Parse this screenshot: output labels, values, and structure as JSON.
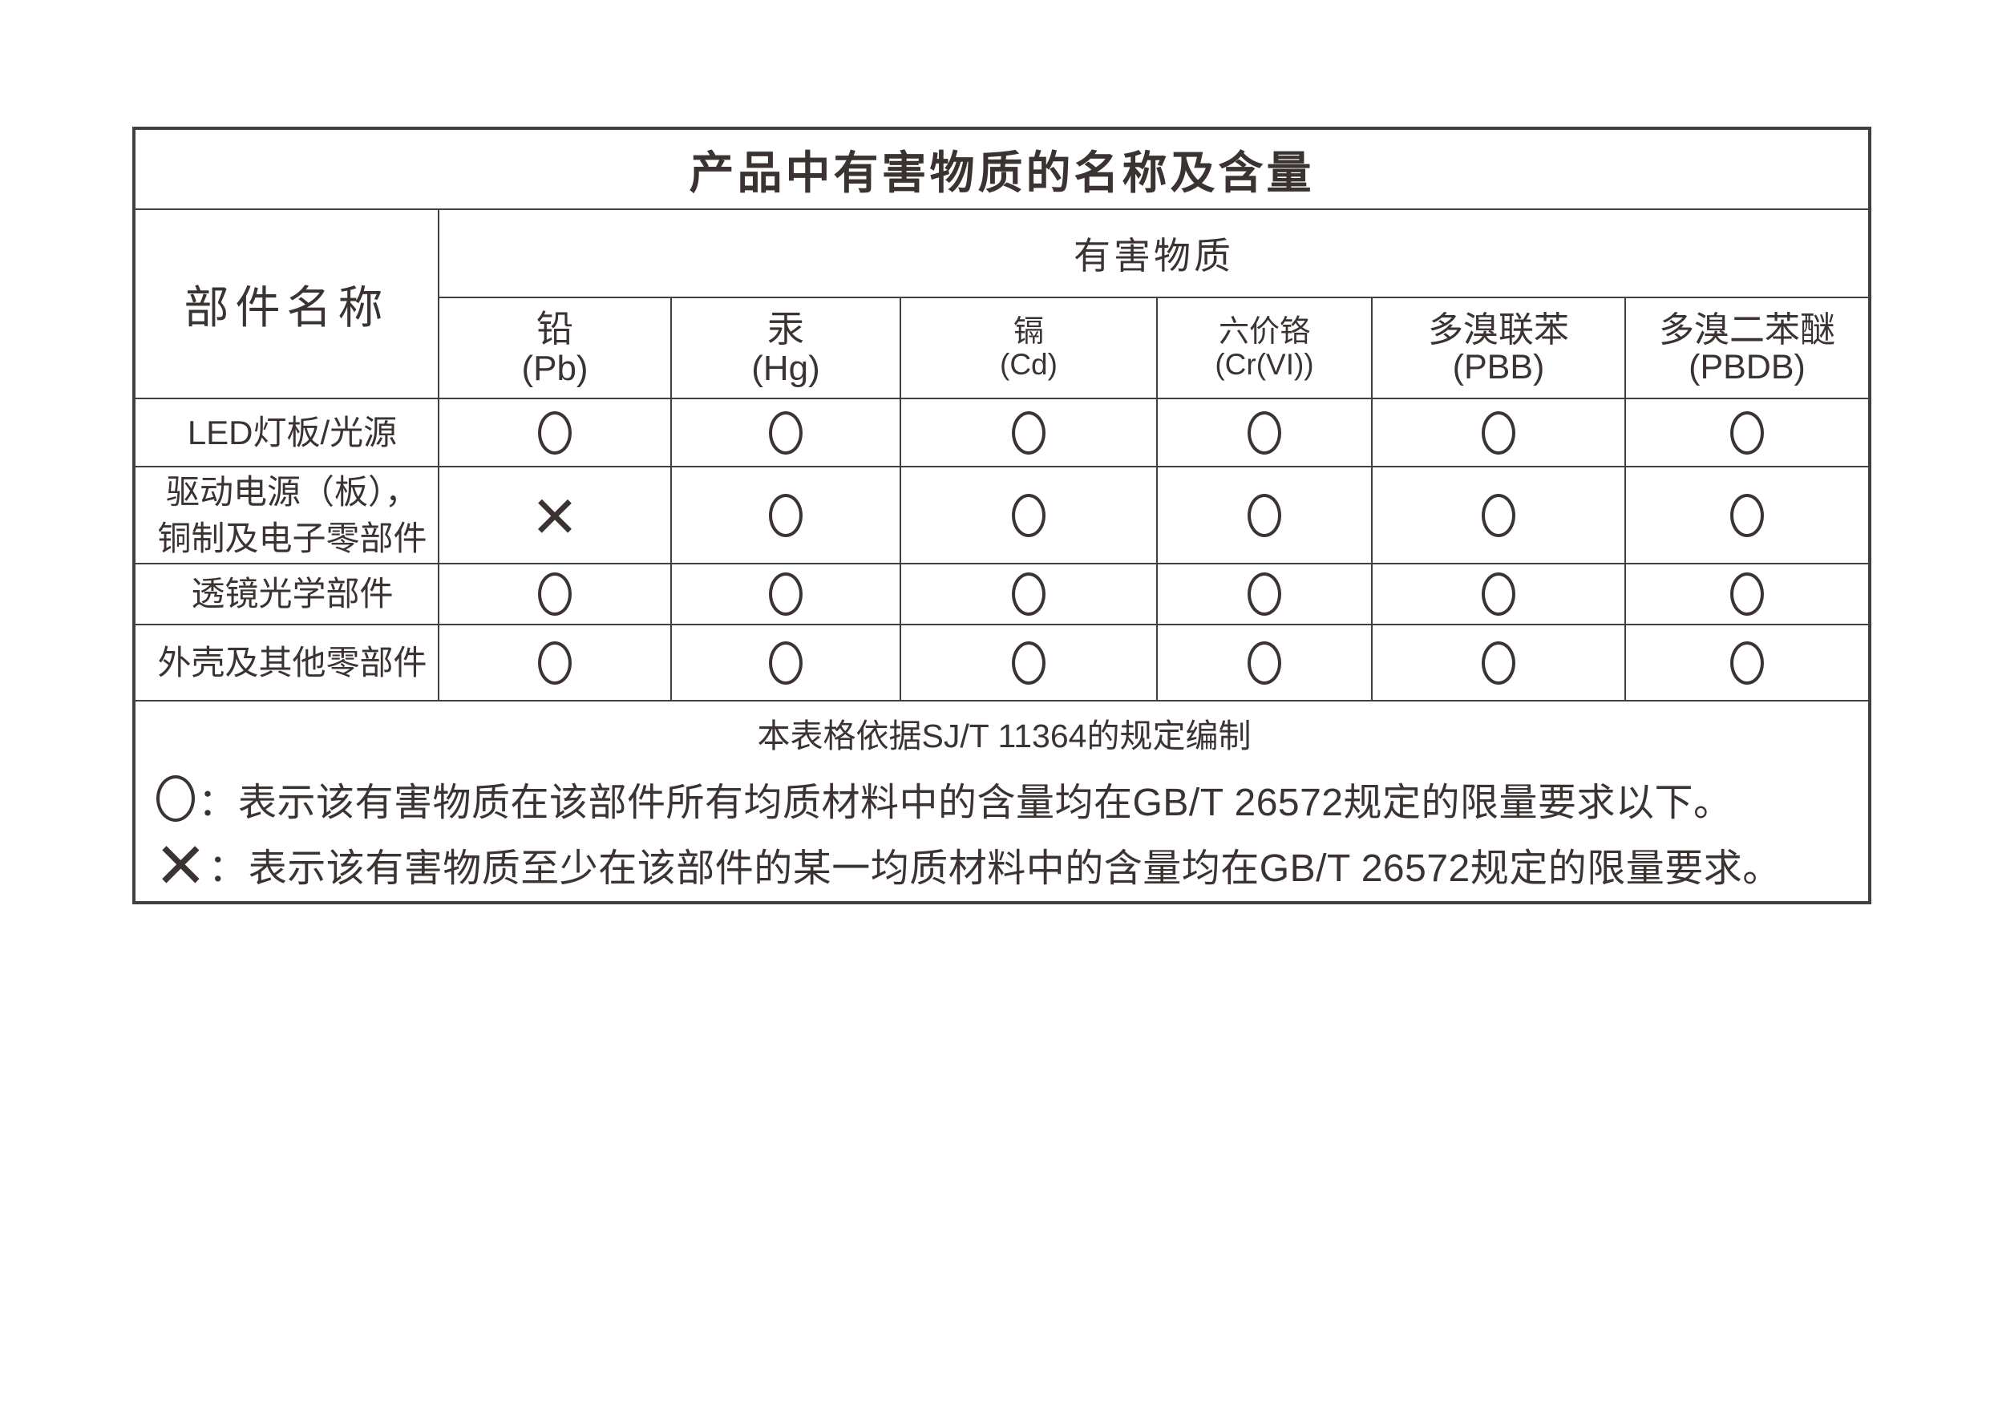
{
  "title": "产品中有害物质的名称及含量",
  "table": {
    "part_name_header": "部件名称",
    "substances_header": "有害物质",
    "columns": [
      {
        "name": "铅",
        "formula": "(Pb)",
        "size": "size-lg"
      },
      {
        "name": "汞",
        "formula": "(Hg)",
        "size": "size-lg"
      },
      {
        "name": "镉",
        "formula": "(Cd)",
        "size": "size-sm"
      },
      {
        "name": "六价铬",
        "formula": "(Cr(VI))",
        "size": "size-sm"
      },
      {
        "name": "多溴联苯",
        "formula": "(PBB)",
        "size": "size-md"
      },
      {
        "name": "多溴二苯醚",
        "formula": "(PBDB)",
        "size": "size-md"
      }
    ],
    "rows": [
      {
        "part_lines": [
          "LED灯板/光源"
        ],
        "marks": [
          "circle",
          "circle",
          "circle",
          "circle",
          "circle",
          "circle"
        ]
      },
      {
        "part_lines": [
          "驱动电源（板），",
          "铜制及电子零部件"
        ],
        "marks": [
          "x",
          "circle",
          "circle",
          "circle",
          "circle",
          "circle"
        ]
      },
      {
        "part_lines": [
          "透镜光学部件"
        ],
        "marks": [
          "circle",
          "circle",
          "circle",
          "circle",
          "circle",
          "circle"
        ]
      },
      {
        "part_lines": [
          "外壳及其他零部件"
        ],
        "marks": [
          "circle",
          "circle",
          "circle",
          "circle",
          "circle",
          "circle"
        ]
      }
    ],
    "footer": {
      "note": "本表格依据SJ/T 11364的规定编制",
      "legend": [
        {
          "symbol": "circle",
          "separator": "：",
          "text": "表示该有害物质在该部件所有均质材料中的含量均在GB/T 26572规定的限量要求以下。"
        },
        {
          "symbol": "x",
          "separator": "：",
          "text": "表示该有害物质至少在该部件的某一均质材料中的含量均在GB/T 26572规定的限量要求。"
        }
      ]
    }
  },
  "marks": {
    "x_label": "×"
  },
  "colors": {
    "text": "#3a3331",
    "border": "#443e3c",
    "background": "#ffffff"
  }
}
